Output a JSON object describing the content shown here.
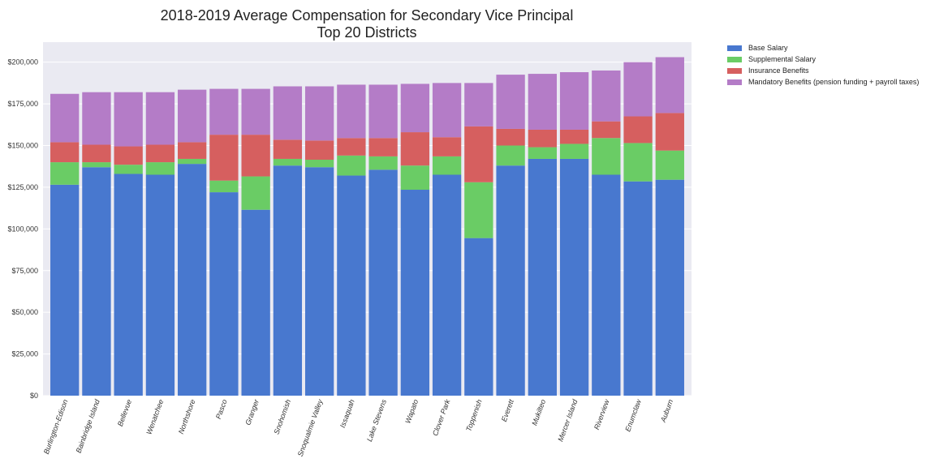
{
  "chart_data": {
    "type": "bar",
    "stacked": true,
    "title": [
      "2018-2019 Average Compensation for Secondary Vice Principal",
      "Top 20 Districts"
    ],
    "xlabel": "",
    "ylabel": "",
    "ylim": [
      0,
      212000
    ],
    "yticks": [
      0,
      25000,
      50000,
      75000,
      100000,
      125000,
      150000,
      175000,
      200000
    ],
    "ytick_labels": [
      "$0",
      "$25,000",
      "$50,000",
      "$75,000",
      "$100,000",
      "$125,000",
      "$150,000",
      "$175,000",
      "$200,000"
    ],
    "grid": true,
    "legend_position": "outside-right-top",
    "categories": [
      "Burlington-Edison",
      "Bainbridge Island",
      "Bellevue",
      "Wenatchee",
      "Northshore",
      "Pasco",
      "Granger",
      "Snohomish",
      "Snoqualmie Valley",
      "Issaquah",
      "Lake Stevens",
      "Wapato",
      "Clover Park",
      "Toppenish",
      "Everett",
      "Mukilteo",
      "Mercer Island",
      "Riverview",
      "Enumclaw",
      "Auburn"
    ],
    "series": [
      {
        "name": "Base Salary",
        "color": "#4878cf",
        "values": [
          126500,
          137000,
          133000,
          132500,
          139000,
          122000,
          111500,
          138000,
          137000,
          132000,
          135500,
          123500,
          132500,
          94500,
          138000,
          142000,
          142000,
          132500,
          128500,
          129500
        ]
      },
      {
        "name": "Supplemental Salary",
        "color": "#6acc65",
        "values": [
          13500,
          3000,
          5500,
          7500,
          3000,
          7000,
          20000,
          4000,
          4500,
          12000,
          8000,
          14500,
          11000,
          33500,
          12000,
          7000,
          9000,
          22000,
          23000,
          17500
        ]
      },
      {
        "name": "Insurance Benefits",
        "color": "#d65f5f",
        "values": [
          12000,
          10500,
          11000,
          10500,
          10000,
          27500,
          25000,
          11500,
          11500,
          10500,
          11000,
          20000,
          11500,
          33500,
          10000,
          10500,
          8500,
          10000,
          16000,
          22500
        ]
      },
      {
        "name": "Mandatory Benefits (pension funding + payroll taxes)",
        "color": "#b47cc7",
        "values": [
          29000,
          31500,
          32500,
          31500,
          31500,
          27500,
          27500,
          32000,
          32500,
          32000,
          32000,
          29000,
          32500,
          26000,
          32500,
          33500,
          34500,
          30500,
          32500,
          33500
        ]
      }
    ]
  }
}
